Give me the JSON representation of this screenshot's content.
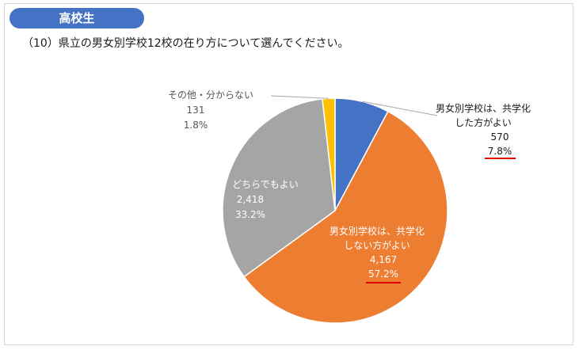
{
  "header": {
    "badge": "高校生",
    "question": "（10）県立の男女別学校12校の在り方について選んでください。"
  },
  "colors": {
    "badge": "#4472c4",
    "blue": "#4472c4",
    "orange": "#ed7d31",
    "gray": "#a5a5a5",
    "yellow": "#ffc000",
    "underline": "#e00000"
  },
  "chart_data": {
    "type": "pie",
    "title": "",
    "start": "12 o'clock, clockwise",
    "slices": [
      {
        "key": "coed",
        "line1": "男女別学校は、共学化",
        "line2": "した方がよい",
        "count": "570",
        "percent_label": "7.8%",
        "value": 7.8,
        "color": "#4472c4",
        "underlined": true
      },
      {
        "key": "keep",
        "line1": "男女別学校は、共学化",
        "line2": "しない方がよい",
        "count": "4,167",
        "percent_label": "57.2%",
        "value": 57.2,
        "color": "#ed7d31",
        "underlined": true
      },
      {
        "key": "either",
        "line1": "どちらでもよい",
        "line2": "",
        "count": "2,418",
        "percent_label": "33.2%",
        "value": 33.2,
        "color": "#a5a5a5",
        "underlined": false
      },
      {
        "key": "other",
        "line1": "その他・分からない",
        "line2": "",
        "count": "131",
        "percent_label": "1.8%",
        "value": 1.8,
        "color": "#ffc000",
        "underlined": false
      }
    ]
  }
}
